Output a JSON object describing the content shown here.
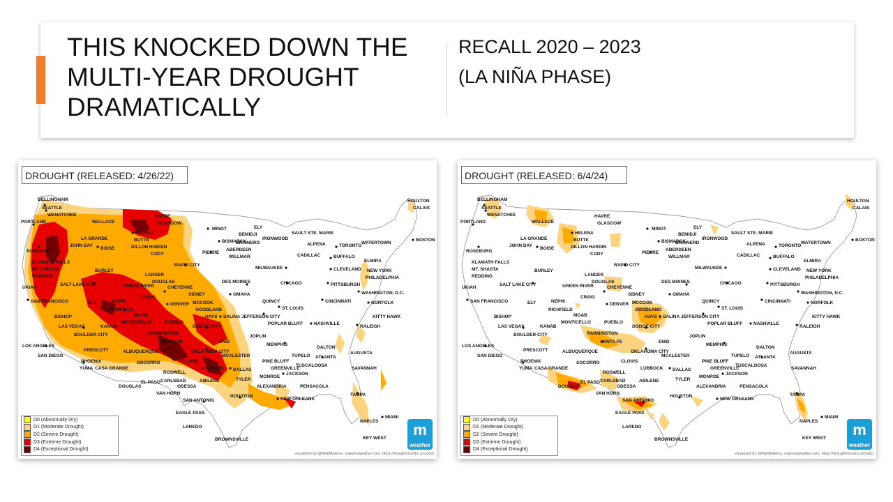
{
  "slide": {
    "title_lines": [
      "THIS KNOCKED DOWN THE",
      "MULTI-YEAR DROUGHT",
      "DRAMATICALLY"
    ],
    "subtitle_lines": [
      "RECALL 2020 – 2023",
      "(LA NIÑA PHASE)"
    ],
    "accent_color": "#ed7d31"
  },
  "maps": [
    {
      "label": "DROUGHT (RELEASED: 4/26/22)"
    },
    {
      "label": "DROUGHT (RELEASED: 6/4/24)"
    }
  ],
  "legend": [
    {
      "label": "D0 (Abnormally Dry)",
      "color": "#ffff00"
    },
    {
      "label": "D1 (Moderate Drought)",
      "color": "#fcd37f"
    },
    {
      "label": "D2 (Severe Drought)",
      "color": "#ffaa00"
    },
    {
      "label": "D3 (Extreme Drought)",
      "color": "#e60000"
    },
    {
      "label": "D4 (Exceptional Drought)",
      "color": "#730000"
    }
  ],
  "credit": "visualized by @MattMakens, makensweather.com, https://droughtmonitor.unl.edu/",
  "logo": {
    "glyph": "m",
    "text": "weather",
    "color": "#1a9fd9"
  },
  "cities": [
    "BELLINGHAM",
    "SEATTLE",
    "WENATCHEE",
    "PORTLAND",
    "WALLACE",
    "HAVRE",
    "GLASGOW",
    "HELENA",
    "BUTTE",
    "DILLON",
    "HARDIN",
    "MINOT",
    "BISMARCK",
    "BEMIDJI",
    "ELY",
    "BRAINERD",
    "IRONWOOD",
    "SAULT STE. MARIE",
    "ALPENA",
    "TORONTO",
    "WATERTOWN",
    "HOULTON",
    "CALAIS",
    "BOSTON",
    "ROSEBURG",
    "LA GRANDE",
    "JOHN DAY",
    "BOISE",
    "CODY",
    "PIERRE",
    "ABERDEEN",
    "WILLMAR",
    "CADILLAC",
    "BUFFALO",
    "ELMIRA",
    "KLAMATH FALLS",
    "MT. SHASTA",
    "REDDING",
    "BURLEY",
    "LANDER",
    "RAPID CITY",
    "MILWAUKEE",
    "CLEVELAND",
    "NEW YORK",
    "PHILADELPHIA",
    "UKIAH",
    "SALT LAKE CITY",
    "GREEN RIVER",
    "DOUGLAS",
    "CHEYENNE",
    "DES MOINES",
    "CHICAGO",
    "PITTSBURGH",
    "WASHINGTON, D.C.",
    "NORFOLK",
    "SAN FRANCISCO",
    "ELY",
    "NEPHI",
    "RICHFIELD",
    "CRAIG",
    "DENVER",
    "MCCOOK",
    "SIDNEY",
    "OMAHA",
    "QUINCY",
    "ST. LOUIS",
    "CINCINNATI",
    "KITTY HAWK",
    "BISHOP",
    "LAS VEGAS",
    "KANAB",
    "MOAB",
    "MONTICELLO",
    "PUEBLO",
    "GOODLAND",
    "HAYS",
    "SALINA",
    "JEFFERSON CITY",
    "RALEIGH",
    "BOULDER CITY",
    "FARMINGTON",
    "DODGE CITY",
    "POPLAR BLUFF",
    "NASHVILLE",
    "LOS ANGELES",
    "SANTA FE",
    "ENID",
    "JOPLIN",
    "MEMPHIS",
    "SAN DIEGO",
    "PRESCOTT",
    "PHOENIX",
    "ALBUQUERQUE",
    "OKLAHOMA CITY",
    "DALTON",
    "ATLANTA",
    "AUGUSTA",
    "YUMA",
    "CASA GRANDE",
    "SOCORRO",
    "CLOVIS",
    "MCALESTER",
    "TUPELO",
    "PINE BLUFF",
    "GREENVILLE",
    "TUSCALOOSA",
    "ROSWELL",
    "LUBBOCK",
    "DALLAS",
    "SAVANNAH",
    "DOUGLAS",
    "EL PASO",
    "CARLSBAD",
    "ODESSA",
    "ABILENE",
    "TYLER",
    "MONROE",
    "JACKSON",
    "VAN HORN",
    "ALEXANDRIA",
    "PENSACOLA",
    "SAN ANTONIO",
    "HOUSTON",
    "NEW ORLEANS",
    "EAGLE PASS",
    "TAMPA",
    "MIAMI",
    "LAREDO",
    "NAPLES",
    "BROWNSVILLE",
    "KEY WEST"
  ]
}
